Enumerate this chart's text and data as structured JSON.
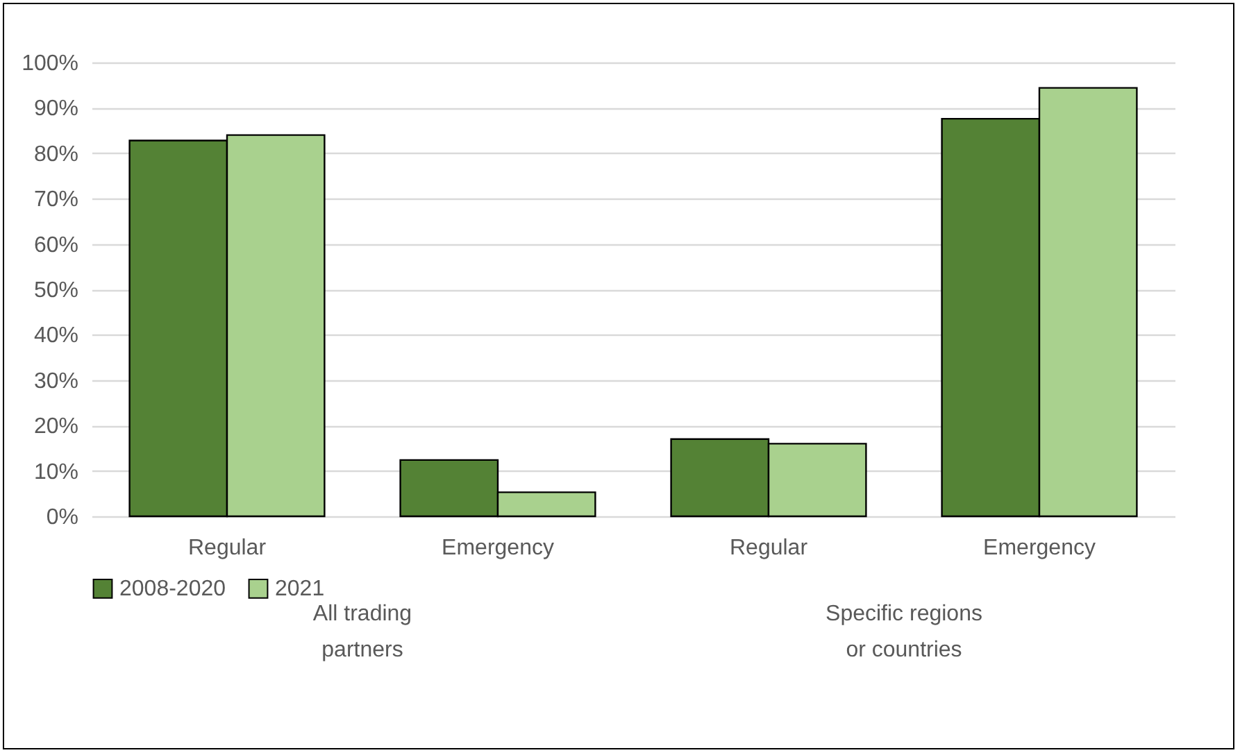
{
  "chart_data": {
    "type": "bar",
    "categories": [
      "Regular",
      "Emergency",
      "Regular",
      "Emergency"
    ],
    "series": [
      {
        "name": "2008-2020",
        "color": "#548235",
        "values": [
          82.8,
          12.4,
          17.0,
          87.6
        ]
      },
      {
        "name": "2021",
        "color": "#a9d18e",
        "values": [
          84.0,
          5.3,
          16.0,
          94.4
        ]
      }
    ],
    "ylim": [
      0,
      100
    ],
    "yticks": [
      {
        "value": 0,
        "label": "0%"
      },
      {
        "value": 10,
        "label": "10%"
      },
      {
        "value": 20,
        "label": "20%"
      },
      {
        "value": 30,
        "label": "30%"
      },
      {
        "value": 40,
        "label": "40%"
      },
      {
        "value": 50,
        "label": "50%"
      },
      {
        "value": 60,
        "label": "60%"
      },
      {
        "value": 70,
        "label": "70%"
      },
      {
        "value": 80,
        "label": "80%"
      },
      {
        "value": 90,
        "label": "90%"
      },
      {
        "value": 100,
        "label": "100%"
      }
    ],
    "annotations": [
      "All trading partners",
      "Specific regions or countries"
    ],
    "grid": "y",
    "legend": "bottom"
  }
}
